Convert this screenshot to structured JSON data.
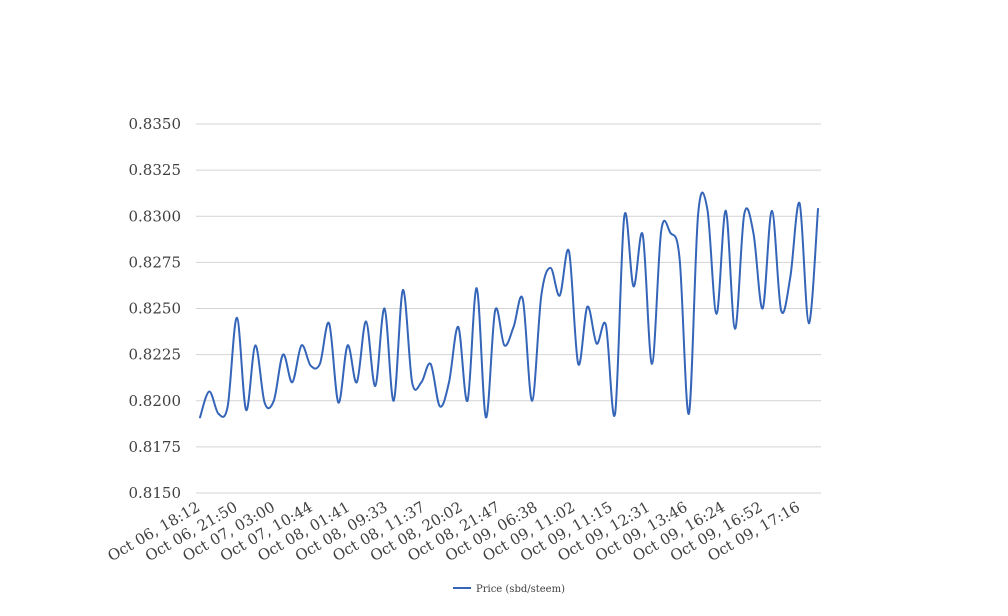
{
  "chart_data": {
    "type": "line",
    "title": "",
    "xlabel": "",
    "ylabel": "",
    "ylim": [
      0.815,
      0.835
    ],
    "yticks": [
      "0.8150",
      "0.8175",
      "0.8200",
      "0.8225",
      "0.8250",
      "0.8275",
      "0.8300",
      "0.8325",
      "0.8350"
    ],
    "x_tick_labels": [
      "Oct 06, 18:12",
      "Oct 06, 21:50",
      "Oct 07, 03:00",
      "Oct 07, 10:44",
      "Oct 08, 01:41",
      "Oct 08, 09:33",
      "Oct 08, 11:37",
      "Oct 08, 20:02",
      "Oct 08, 21:47",
      "Oct 09, 06:38",
      "Oct 09, 11:02",
      "Oct 09, 11:15",
      "Oct 09, 12:31",
      "Oct 09, 13:46",
      "Oct 09, 16:24",
      "Oct 09, 16:52",
      "Oct 09, 17:16"
    ],
    "grid": true,
    "legend_position": "bottom",
    "series": [
      {
        "name": "Price (sbd/steem)",
        "color": "#3565b8",
        "values": [
          0.8191,
          0.8205,
          0.8193,
          0.8197,
          0.8245,
          0.8195,
          0.823,
          0.8199,
          0.82,
          0.8225,
          0.821,
          0.823,
          0.8219,
          0.822,
          0.8242,
          0.8199,
          0.823,
          0.821,
          0.8243,
          0.8208,
          0.825,
          0.82,
          0.826,
          0.821,
          0.821,
          0.822,
          0.8197,
          0.821,
          0.824,
          0.82,
          0.8261,
          0.8191,
          0.8249,
          0.823,
          0.824,
          0.8255,
          0.82,
          0.8257,
          0.8272,
          0.8257,
          0.8281,
          0.822,
          0.8251,
          0.8231,
          0.8241,
          0.8193,
          0.83,
          0.8262,
          0.829,
          0.822,
          0.8292,
          0.8291,
          0.8277,
          0.8193,
          0.8301,
          0.8304,
          0.8247,
          0.8303,
          0.8239,
          0.8301,
          0.8291,
          0.825,
          0.8303,
          0.8249,
          0.8267,
          0.8307,
          0.8242,
          0.8304
        ]
      }
    ]
  }
}
